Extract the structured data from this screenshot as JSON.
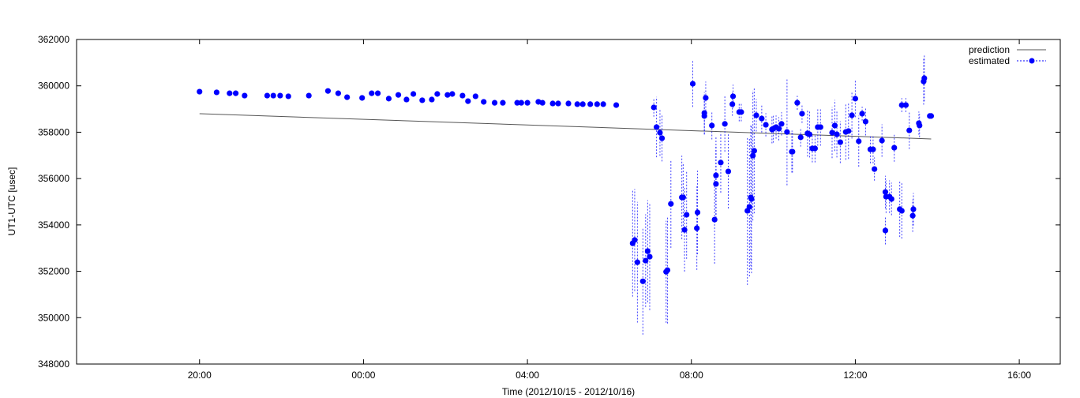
{
  "chart_data": {
    "type": "scatter",
    "title": "",
    "xlabel": "Time (2012/10/15 - 2012/10/16)",
    "ylabel": "UT1-UTC [usec]",
    "xlim": [
      "2012-10-15 17:00",
      "2012-10-16 17:00"
    ],
    "ylim": [
      348000,
      362000
    ],
    "grid": false,
    "legend_position": "top-right",
    "x_ticks": [
      {
        "t": "2012-10-15 20:00",
        "label": "20:00"
      },
      {
        "t": "2012-10-16 00:00",
        "label": "00:00"
      },
      {
        "t": "2012-10-16 04:00",
        "label": "04:00"
      },
      {
        "t": "2012-10-16 08:00",
        "label": "08:00"
      },
      {
        "t": "2012-10-16 12:00",
        "label": "12:00"
      },
      {
        "t": "2012-10-16 16:00",
        "label": "16:00"
      }
    ],
    "y_ticks": [
      "348000",
      "350000",
      "352000",
      "354000",
      "356000",
      "358000",
      "360000",
      "362000"
    ],
    "series": [
      {
        "name": "prediction",
        "style": "line",
        "color": "#555555",
        "x": [
          "2012-10-15 20:00",
          "2012-10-16 13:51"
        ],
        "y": [
          358800,
          357710
        ]
      },
      {
        "name": "estimated",
        "style": "points-errorbars",
        "color": "#0000ff",
        "x": [
          "2012-10-15 20:00",
          "2012-10-15 20:25",
          "2012-10-15 20:44",
          "2012-10-15 20:53",
          "2012-10-15 21:06",
          "2012-10-15 21:39",
          "2012-10-15 21:48",
          "2012-10-15 21:58",
          "2012-10-15 22:10",
          "2012-10-15 22:40",
          "2012-10-15 23:08",
          "2012-10-15 23:23",
          "2012-10-15 23:36",
          "2012-10-15 23:58",
          "2012-10-16 00:12",
          "2012-10-16 00:21",
          "2012-10-16 00:37",
          "2012-10-16 00:51",
          "2012-10-16 01:03",
          "2012-10-16 01:13",
          "2012-10-16 01:26",
          "2012-10-16 01:40",
          "2012-10-16 01:48",
          "2012-10-16 02:03",
          "2012-10-16 02:10",
          "2012-10-16 02:25",
          "2012-10-16 02:33",
          "2012-10-16 02:44",
          "2012-10-16 02:56",
          "2012-10-16 03:12",
          "2012-10-16 03:24",
          "2012-10-16 03:45",
          "2012-10-16 03:51",
          "2012-10-16 04:00",
          "2012-10-16 04:16",
          "2012-10-16 04:22",
          "2012-10-16 04:37",
          "2012-10-16 04:45",
          "2012-10-16 05:00",
          "2012-10-16 05:13",
          "2012-10-16 05:21",
          "2012-10-16 05:32",
          "2012-10-16 05:42",
          "2012-10-16 05:51",
          "2012-10-16 06:10",
          "2012-10-16 06:34",
          "2012-10-16 06:37",
          "2012-10-16 06:41",
          "2012-10-16 06:49",
          "2012-10-16 06:53",
          "2012-10-16 06:56",
          "2012-10-16 06:59",
          "2012-10-16 07:05",
          "2012-10-16 07:09",
          "2012-10-16 07:14",
          "2012-10-16 07:17",
          "2012-10-16 07:23",
          "2012-10-16 07:25",
          "2012-10-16 07:30",
          "2012-10-16 07:46",
          "2012-10-16 07:48",
          "2012-10-16 07:50",
          "2012-10-16 07:53",
          "2012-10-16 08:02",
          "2012-10-16 08:08",
          "2012-10-16 08:09",
          "2012-10-16 08:19",
          "2012-10-16 08:19",
          "2012-10-16 08:21",
          "2012-10-16 08:30",
          "2012-10-16 08:34",
          "2012-10-16 08:36",
          "2012-10-16 08:36",
          "2012-10-16 08:43",
          "2012-10-16 08:49",
          "2012-10-16 08:54",
          "2012-10-16 09:00",
          "2012-10-16 09:01",
          "2012-10-16 09:10",
          "2012-10-16 09:13",
          "2012-10-16 09:22",
          "2012-10-16 09:25",
          "2012-10-16 09:27",
          "2012-10-16 09:28",
          "2012-10-16 09:30",
          "2012-10-16 09:32",
          "2012-10-16 09:35",
          "2012-10-16 09:43",
          "2012-10-16 09:49",
          "2012-10-16 09:58",
          "2012-10-16 10:00",
          "2012-10-16 10:04",
          "2012-10-16 10:08",
          "2012-10-16 10:12",
          "2012-10-16 10:20",
          "2012-10-16 10:27",
          "2012-10-16 10:28",
          "2012-10-16 10:35",
          "2012-10-16 10:40",
          "2012-10-16 10:42",
          "2012-10-16 10:50",
          "2012-10-16 10:53",
          "2012-10-16 10:57",
          "2012-10-16 11:01",
          "2012-10-16 11:05",
          "2012-10-16 11:09",
          "2012-10-16 11:26",
          "2012-10-16 11:30",
          "2012-10-16 11:33",
          "2012-10-16 11:38",
          "2012-10-16 11:46",
          "2012-10-16 11:50",
          "2012-10-16 11:55",
          "2012-10-16 12:00",
          "2012-10-16 12:05",
          "2012-10-16 12:10",
          "2012-10-16 12:15",
          "2012-10-16 12:22",
          "2012-10-16 12:26",
          "2012-10-16 12:28",
          "2012-10-16 12:39",
          "2012-10-16 12:44",
          "2012-10-16 12:44",
          "2012-10-16 12:45",
          "2012-10-16 12:50",
          "2012-10-16 12:53",
          "2012-10-16 12:57",
          "2012-10-16 13:05",
          "2012-10-16 13:08",
          "2012-10-16 13:08",
          "2012-10-16 13:14",
          "2012-10-16 13:19",
          "2012-10-16 13:24",
          "2012-10-16 13:25",
          "2012-10-16 13:33",
          "2012-10-16 13:34",
          "2012-10-16 13:40",
          "2012-10-16 13:41",
          "2012-10-16 13:49",
          "2012-10-16 13:51"
        ],
        "y": [
          359750,
          359720,
          359680,
          359680,
          359580,
          359580,
          359580,
          359580,
          359550,
          359580,
          359780,
          359680,
          359510,
          359480,
          359680,
          359680,
          359450,
          359610,
          359410,
          359650,
          359380,
          359410,
          359650,
          359610,
          359650,
          359580,
          359340,
          359550,
          359310,
          359270,
          359270,
          359270,
          359270,
          359270,
          359310,
          359270,
          359240,
          359240,
          359240,
          359210,
          359210,
          359210,
          359210,
          359210,
          359170,
          353210,
          353350,
          352390,
          351570,
          352460,
          352870,
          352630,
          359070,
          358220,
          357980,
          357740,
          351980,
          352050,
          354910,
          355190,
          355190,
          353790,
          354440,
          360090,
          353860,
          354540,
          358700,
          358830,
          359480,
          358290,
          354230,
          355770,
          356140,
          356690,
          358360,
          356310,
          359210,
          359550,
          358870,
          358870,
          354610,
          354780,
          355190,
          355120,
          356990,
          357200,
          358730,
          358590,
          358320,
          358120,
          358150,
          358220,
          358150,
          358360,
          358010,
          357160,
          357160,
          359270,
          357780,
          358800,
          357950,
          357910,
          357300,
          357300,
          358220,
          358220,
          357980,
          358290,
          357910,
          357570,
          358010,
          358050,
          358730,
          359450,
          357610,
          358800,
          358460,
          357260,
          357260,
          356410,
          357640,
          355420,
          353760,
          355220,
          355220,
          355120,
          357330,
          354680,
          354610,
          359170,
          359170,
          358080,
          354400,
          354680,
          358390,
          358290,
          360190,
          360330,
          358700,
          358700
        ],
        "err": [
          100,
          100,
          100,
          100,
          100,
          100,
          100,
          100,
          100,
          100,
          100,
          100,
          100,
          100,
          100,
          100,
          100,
          100,
          100,
          100,
          100,
          100,
          100,
          100,
          100,
          100,
          100,
          100,
          100,
          100,
          100,
          100,
          100,
          100,
          100,
          100,
          100,
          100,
          100,
          100,
          100,
          100,
          100,
          100,
          100,
          2300,
          2200,
          2600,
          2300,
          2000,
          2200,
          2300,
          400,
          1300,
          1000,
          1000,
          2200,
          2300,
          1900,
          1800,
          1500,
          1800,
          1900,
          1000,
          1800,
          1800,
          800,
          900,
          700,
          600,
          1900,
          1600,
          1700,
          1300,
          1200,
          1600,
          500,
          500,
          400,
          400,
          3200,
          3000,
          3100,
          3200,
          2800,
          2700,
          700,
          600,
          500,
          600,
          600,
          500,
          500,
          500,
          2300,
          900,
          900,
          300,
          400,
          400,
          1000,
          1000,
          600,
          600,
          800,
          800,
          1100,
          1100,
          1000,
          900,
          1200,
          1200,
          1000,
          800,
          1100,
          300,
          600,
          600,
          600,
          500,
          700,
          700,
          600,
          700,
          700,
          700,
          600,
          1200,
          1200,
          300,
          300,
          800,
          700,
          700,
          500,
          500,
          1000,
          1000,
          100,
          100
        ]
      }
    ]
  }
}
